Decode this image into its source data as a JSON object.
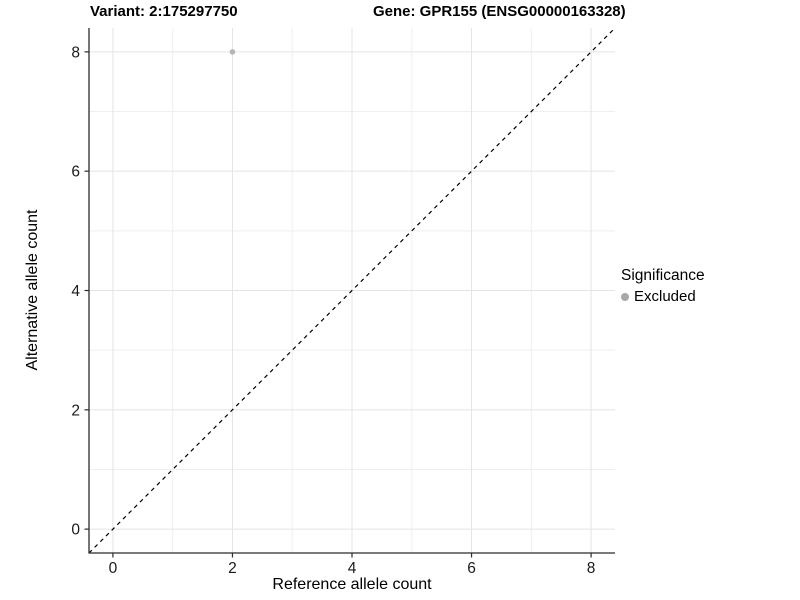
{
  "figure": {
    "background": "#ffffff"
  },
  "chart_data": {
    "type": "scatter",
    "title_left": "Variant: 2:175297750",
    "title_right": "Gene: GPR155 (ENSG00000163328)",
    "xlabel": "Reference allele count",
    "ylabel": "Alternative allele count",
    "xlim": [
      -0.4,
      8.4
    ],
    "ylim": [
      -0.4,
      8.4
    ],
    "x_ticks": [
      0,
      2,
      4,
      6,
      8
    ],
    "y_ticks": [
      0,
      2,
      4,
      6,
      8
    ],
    "minor_gridlines": [
      1,
      3,
      5,
      7
    ],
    "grid": true,
    "reference_line": {
      "kind": "abline",
      "slope": 1,
      "intercept": 0,
      "style": "dashed",
      "color": "#000000"
    },
    "series": [
      {
        "name": "Excluded",
        "color": "#b5b5b5",
        "points": [
          {
            "x": 2,
            "y": 8
          }
        ]
      }
    ],
    "legend": {
      "title": "Significance",
      "position": "right",
      "entries": [
        {
          "label": "Excluded",
          "color": "#a8a8a8"
        }
      ]
    }
  },
  "colors": {
    "axis_line": "#2b2b2b",
    "tick_mark": "#2b2b2b",
    "tick_label": "#1a1a1a",
    "grid_major": "#e4e4e4",
    "grid_minor": "#efefef",
    "point": "#b5b5b5",
    "legend_dot": "#a8a8a8",
    "dashed_line": "#000000"
  }
}
